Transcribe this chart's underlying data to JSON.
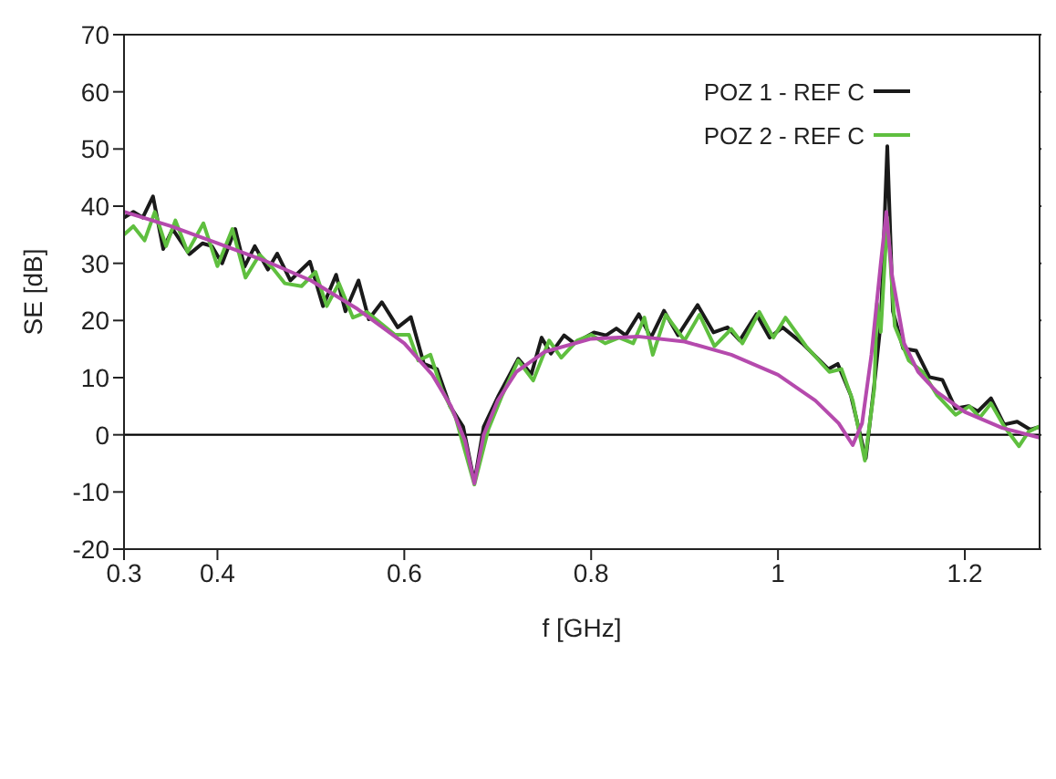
{
  "chart_data": {
    "type": "line",
    "xlabel": "f [GHz]",
    "ylabel": "SE [dB]",
    "xlim": [
      0.3,
      1.28
    ],
    "xticks": [
      0.3,
      0.4,
      0.6,
      0.8,
      1,
      1.2
    ],
    "ylim": [
      -20,
      70
    ],
    "yticks": [
      -20,
      -10,
      0,
      10,
      20,
      30,
      40,
      50,
      60,
      70
    ],
    "grid": false,
    "legend": "top right",
    "marker": "none",
    "line_style": "solid",
    "ref_lines": [
      {
        "axis": "y",
        "value": 0,
        "color": "#000000"
      }
    ],
    "series": [
      {
        "name": "POZ 1 - REF C",
        "color": "#1a1a1a",
        "x": [
          0.3,
          0.31,
          0.32,
          0.331,
          0.342,
          0.352,
          0.37,
          0.384,
          0.394,
          0.405,
          0.419,
          0.429,
          0.44,
          0.454,
          0.464,
          0.478,
          0.499,
          0.513,
          0.527,
          0.537,
          0.551,
          0.562,
          0.576,
          0.593,
          0.607,
          0.621,
          0.635,
          0.649,
          0.663,
          0.675,
          0.685,
          0.701,
          0.722,
          0.736,
          0.747,
          0.757,
          0.771,
          0.782,
          0.803,
          0.816,
          0.827,
          0.837,
          0.851,
          0.864,
          0.878,
          0.893,
          0.914,
          0.931,
          0.946,
          0.959,
          0.977,
          0.991,
          1.005,
          1.026,
          1.054,
          1.064,
          1.078,
          1.094,
          1.103,
          1.11,
          1.117,
          1.123,
          1.134,
          1.148,
          1.162,
          1.176,
          1.19,
          1.204,
          1.214,
          1.228,
          1.242,
          1.256,
          1.27,
          1.28
        ],
        "values": [
          38,
          39,
          38,
          41.7,
          32.5,
          36,
          31.6,
          33.5,
          33,
          30,
          36,
          29.4,
          33,
          28.9,
          31.7,
          27,
          30.3,
          22.5,
          28,
          21.6,
          27,
          20.2,
          23.2,
          18.8,
          20.6,
          12.4,
          11.5,
          5,
          1.4,
          -8.3,
          1.4,
          6.9,
          13.3,
          10.6,
          17,
          14.2,
          17.4,
          16,
          17.9,
          17.4,
          18.6,
          17.4,
          21.1,
          17,
          21.7,
          17.4,
          22.7,
          17.9,
          18.8,
          16.5,
          21.1,
          17,
          18.8,
          16,
          11.5,
          12.4,
          6.9,
          -4.1,
          8.7,
          19.7,
          50.5,
          21.6,
          15.1,
          14.7,
          10.1,
          9.6,
          4.6,
          5,
          4.1,
          6.4,
          1.8,
          2.3,
          0.9,
          1.4
        ]
      },
      {
        "name": "POZ 2 - REF C",
        "color": "#5fbf3f",
        "x": [
          0.3,
          0.31,
          0.322,
          0.333,
          0.345,
          0.355,
          0.368,
          0.385,
          0.4,
          0.416,
          0.43,
          0.445,
          0.46,
          0.472,
          0.49,
          0.505,
          0.517,
          0.53,
          0.545,
          0.56,
          0.575,
          0.59,
          0.605,
          0.615,
          0.628,
          0.64,
          0.655,
          0.675,
          0.69,
          0.705,
          0.722,
          0.738,
          0.755,
          0.768,
          0.785,
          0.8,
          0.815,
          0.83,
          0.845,
          0.857,
          0.866,
          0.88,
          0.9,
          0.916,
          0.932,
          0.95,
          0.962,
          0.98,
          0.995,
          1.008,
          1.03,
          1.055,
          1.068,
          1.08,
          1.093,
          1.103,
          1.106,
          1.11,
          1.117,
          1.125,
          1.14,
          1.155,
          1.17,
          1.19,
          1.205,
          1.216,
          1.228,
          1.242,
          1.258,
          1.268,
          1.28
        ],
        "values": [
          35,
          36.5,
          34,
          39,
          33,
          37.5,
          32,
          37,
          29.5,
          36,
          27.5,
          31.5,
          29,
          26.5,
          26,
          28.5,
          22.5,
          26.5,
          20.5,
          21.5,
          19.5,
          17.5,
          17.5,
          13,
          14,
          8,
          3,
          -8.7,
          1,
          7,
          13,
          9.5,
          16.5,
          13.5,
          16.5,
          17.5,
          16,
          17,
          16,
          20.5,
          14,
          21,
          16.5,
          21,
          15.5,
          18.5,
          16,
          21.5,
          17,
          20.5,
          15.5,
          11,
          11.5,
          6,
          -4.5,
          8,
          23,
          18,
          38,
          19,
          13,
          11,
          7,
          3.5,
          5,
          3,
          5.5,
          1.5,
          -2,
          0.5,
          1.5
        ]
      },
      {
        "color": "#b54aad",
        "x": [
          0.3,
          0.35,
          0.4,
          0.45,
          0.5,
          0.55,
          0.6,
          0.63,
          0.65,
          0.665,
          0.675,
          0.685,
          0.7,
          0.72,
          0.75,
          0.8,
          0.85,
          0.9,
          0.95,
          1,
          1.04,
          1.065,
          1.08,
          1.09,
          1.1,
          1.11,
          1.116,
          1.122,
          1.135,
          1.15,
          1.17,
          1.2,
          1.24,
          1.28
        ],
        "values": [
          39,
          36.5,
          33.5,
          30.5,
          27,
          22,
          16,
          10.5,
          5,
          -1,
          -8.5,
          0,
          6,
          11,
          14.5,
          16.8,
          17.2,
          16.3,
          14,
          10.5,
          6,
          2,
          -1.8,
          2,
          14,
          30,
          39,
          28,
          16,
          11,
          7.5,
          4,
          1.2,
          -0.5
        ]
      }
    ]
  }
}
